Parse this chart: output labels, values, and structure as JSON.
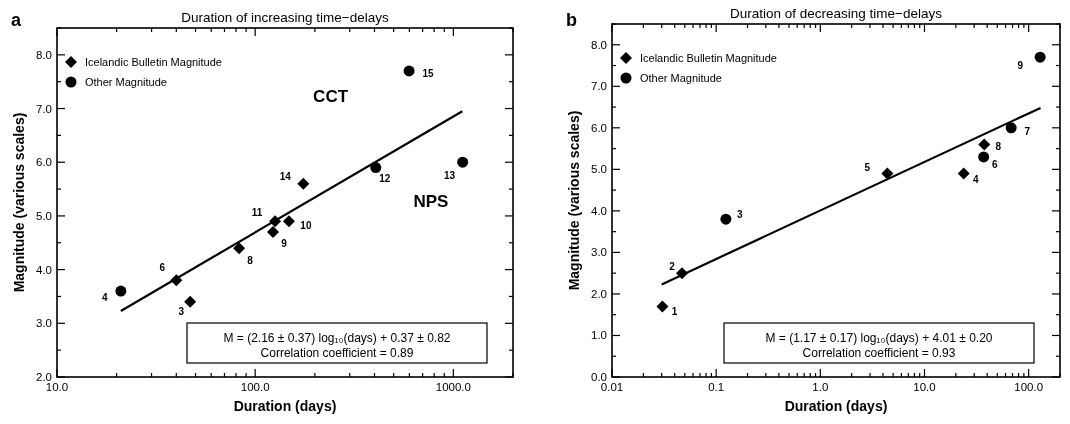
{
  "chart_data": [
    {
      "type": "scatter",
      "title": "Duration of increasing time−delays",
      "xlabel": "Duration (days)",
      "ylabel": "Magnitude (various scales)",
      "log": "x",
      "xlim": [
        10,
        2000
      ],
      "ylim": [
        2,
        8.5
      ],
      "xticks": [
        {
          "value": 10,
          "label": "10.0"
        },
        {
          "value": 20,
          "label": null
        },
        {
          "value": 30,
          "label": null
        },
        {
          "value": 40,
          "label": null
        },
        {
          "value": 50,
          "label": null
        },
        {
          "value": 60,
          "label": null
        },
        {
          "value": 70,
          "label": null
        },
        {
          "value": 80,
          "label": null
        },
        {
          "value": 90,
          "label": null
        },
        {
          "value": 100,
          "label": "100.0"
        },
        {
          "value": 200,
          "label": null
        },
        {
          "value": 300,
          "label": null
        },
        {
          "value": 400,
          "label": null
        },
        {
          "value": 500,
          "label": null
        },
        {
          "value": 600,
          "label": null
        },
        {
          "value": 700,
          "label": null
        },
        {
          "value": 800,
          "label": null
        },
        {
          "value": 900,
          "label": null
        },
        {
          "value": 1000,
          "label": "1000.0"
        },
        {
          "value": 2000,
          "label": null
        }
      ],
      "yticks": [
        {
          "value": 2,
          "label": "2.0"
        },
        {
          "value": 2.5,
          "label": null
        },
        {
          "value": 3,
          "label": "3.0"
        },
        {
          "value": 3.5,
          "label": null
        },
        {
          "value": 4,
          "label": "4.0"
        },
        {
          "value": 4.5,
          "label": null
        },
        {
          "value": 5,
          "label": "5.0"
        },
        {
          "value": 5.5,
          "label": null
        },
        {
          "value": 6,
          "label": "6.0"
        },
        {
          "value": 6.5,
          "label": null
        },
        {
          "value": 7,
          "label": "7.0"
        },
        {
          "value": 7.5,
          "label": null
        },
        {
          "value": 8,
          "label": "8.0"
        },
        {
          "value": 8.5,
          "label": null
        }
      ],
      "legend": "top left",
      "series": [
        {
          "name": "Icelandic Bulletin Magnitude",
          "type": "scatter",
          "marker": "diamond",
          "color": "#000000",
          "x": [
            40,
            47,
            83,
            123,
            126,
            148,
            175
          ],
          "values": [
            3.8,
            3.4,
            4.4,
            4.7,
            4.9,
            4.9,
            5.6
          ]
        },
        {
          "name": "Other Magnitude",
          "type": "scatter",
          "marker": "circle",
          "color": "#000000",
          "x": [
            21,
            406,
            1114,
            598
          ],
          "values": [
            3.6,
            5.9,
            6.0,
            7.7
          ]
        },
        {
          "type": "line",
          "marker": "none",
          "color": "#000000",
          "x": [
            21,
            1110
          ],
          "values": [
            3.23,
            6.95
          ]
        }
      ],
      "annotations": [
        "a",
        "M = (2.16 ± 0.37) log₁₀(days) + 0.37 ± 0.82",
        "Correlation coefficient = 0.89",
        {
          "text": "4",
          "x": 21,
          "y": 3.6
        },
        {
          "text": "6",
          "x": 40,
          "y": 3.8
        },
        {
          "text": "3",
          "x": 47,
          "y": 3.4
        },
        {
          "text": "8",
          "x": 83,
          "y": 4.4
        },
        {
          "text": "9",
          "x": 123,
          "y": 4.7
        },
        {
          "text": "11",
          "x": 126,
          "y": 4.9
        },
        {
          "text": "10",
          "x": 148,
          "y": 4.9
        },
        {
          "text": "14",
          "x": 175,
          "y": 5.6
        },
        {
          "text": "12",
          "x": 406,
          "y": 5.9
        },
        {
          "text": "13",
          "x": 1114,
          "y": 6.0
        },
        {
          "text": "15",
          "x": 598,
          "y": 7.7
        },
        "CCT",
        "NPS"
      ]
    },
    {
      "type": "scatter",
      "title": "Duration of decreasing time−delays",
      "xlabel": "Duration (days)",
      "ylabel": "Magnitude (various scales)",
      "log": "x",
      "xlim": [
        0.01,
        200
      ],
      "ylim": [
        0,
        8.5
      ],
      "xticks": [
        {
          "value": 0.01,
          "label": "0.01"
        },
        {
          "value": 0.02,
          "label": null
        },
        {
          "value": 0.03,
          "label": null
        },
        {
          "value": 0.04,
          "label": null
        },
        {
          "value": 0.05,
          "label": null
        },
        {
          "value": 0.06,
          "label": null
        },
        {
          "value": 0.07,
          "label": null
        },
        {
          "value": 0.08,
          "label": null
        },
        {
          "value": 0.09,
          "label": null
        },
        {
          "value": 0.1,
          "label": "0.1"
        },
        {
          "value": 0.2,
          "label": null
        },
        {
          "value": 0.3,
          "label": null
        },
        {
          "value": 0.4,
          "label": null
        },
        {
          "value": 0.5,
          "label": null
        },
        {
          "value": 0.6,
          "label": null
        },
        {
          "value": 0.7,
          "label": null
        },
        {
          "value": 0.8,
          "label": null
        },
        {
          "value": 0.9,
          "label": null
        },
        {
          "value": 1,
          "label": "1.0"
        },
        {
          "value": 2,
          "label": null
        },
        {
          "value": 3,
          "label": null
        },
        {
          "value": 4,
          "label": null
        },
        {
          "value": 5,
          "label": null
        },
        {
          "value": 6,
          "label": null
        },
        {
          "value": 7,
          "label": null
        },
        {
          "value": 8,
          "label": null
        },
        {
          "value": 9,
          "label": null
        },
        {
          "value": 10,
          "label": "10.0"
        },
        {
          "value": 20,
          "label": null
        },
        {
          "value": 30,
          "label": null
        },
        {
          "value": 40,
          "label": null
        },
        {
          "value": 50,
          "label": null
        },
        {
          "value": 60,
          "label": null
        },
        {
          "value": 70,
          "label": null
        },
        {
          "value": 80,
          "label": null
        },
        {
          "value": 90,
          "label": null
        },
        {
          "value": 100,
          "label": "100.0"
        },
        {
          "value": 200,
          "label": null
        }
      ],
      "yticks": [
        {
          "value": 0,
          "label": "0.0"
        },
        {
          "value": 0.5,
          "label": null
        },
        {
          "value": 1,
          "label": "1.0"
        },
        {
          "value": 1.5,
          "label": null
        },
        {
          "value": 2,
          "label": "2.0"
        },
        {
          "value": 2.5,
          "label": null
        },
        {
          "value": 3,
          "label": "3.0"
        },
        {
          "value": 3.5,
          "label": null
        },
        {
          "value": 4,
          "label": "4.0"
        },
        {
          "value": 4.5,
          "label": null
        },
        {
          "value": 5,
          "label": "5.0"
        },
        {
          "value": 5.5,
          "label": null
        },
        {
          "value": 6,
          "label": "6.0"
        },
        {
          "value": 6.5,
          "label": null
        },
        {
          "value": 7,
          "label": "7.0"
        },
        {
          "value": 7.5,
          "label": null
        },
        {
          "value": 8,
          "label": "8.0"
        },
        {
          "value": 8.5,
          "label": null
        }
      ],
      "legend": "top left",
      "series": [
        {
          "name": "Icelandic Bulletin Magnitude",
          "type": "scatter",
          "marker": "diamond",
          "color": "#000000",
          "x": [
            0.0305,
            0.047,
            4.4,
            23.8,
            37.5
          ],
          "values": [
            1.7,
            2.5,
            4.9,
            4.9,
            5.6
          ]
        },
        {
          "name": "Other Magnitude",
          "type": "scatter",
          "marker": "circle",
          "color": "#000000",
          "x": [
            0.124,
            37,
            68,
            129
          ],
          "values": [
            3.8,
            5.3,
            6.0,
            7.7
          ]
        },
        {
          "type": "line",
          "marker": "none",
          "color": "#000000",
          "x": [
            0.03,
            130
          ],
          "values": [
            2.23,
            6.48
          ]
        }
      ],
      "annotations": [
        "b",
        "M = (1.17 ± 0.17) log₁₀(days) + 4.01 ± 0.20",
        "Correlation coefficient = 0.93",
        {
          "text": "1",
          "x": 0.0305,
          "y": 1.7
        },
        {
          "text": "2",
          "x": 0.047,
          "y": 2.5
        },
        {
          "text": "3",
          "x": 0.124,
          "y": 3.8
        },
        {
          "text": "5",
          "x": 4.4,
          "y": 4.9
        },
        {
          "text": "4",
          "x": 23.8,
          "y": 4.9
        },
        {
          "text": "8",
          "x": 37.5,
          "y": 5.6
        },
        {
          "text": "6",
          "x": 37,
          "y": 5.3
        },
        {
          "text": "7",
          "x": 68,
          "y": 6.0
        },
        {
          "text": "9",
          "x": 129,
          "y": 7.7
        }
      ]
    }
  ]
}
